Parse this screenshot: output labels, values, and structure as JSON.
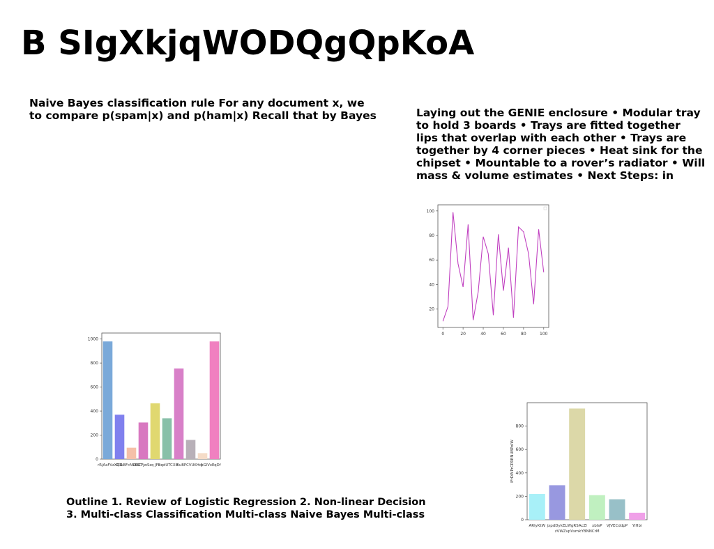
{
  "slide": {
    "title": "B SIgXkjqWODQgQpKoA",
    "text_blocks": [
      "Naive Bayes classification rule For any document x, we\nto compare p(spam|x) and p(ham|x) Recall that by Bayes",
      "Laying out the GENIE enclosure • Modular tray\nto hold 3 boards • Trays are fitted together\nlips that overlap with each other • Trays are\ntogether by 4 corner pieces • Heat sink for the\nchipset • Mountable to a rover’s radiator • Will\nmass & volume estimates • Next Steps: in",
      "Outline 1. Review of Logistic Regression 2. Non-linear Decision\n3. Multi-class Classification Multi-class Naive Bayes Multi-class"
    ]
  },
  "chart_data": [
    {
      "type": "line",
      "x": [
        0,
        5,
        10,
        15,
        20,
        25,
        30,
        35,
        40,
        45,
        50,
        55,
        60,
        65,
        70,
        75,
        80,
        85,
        90,
        95,
        100
      ],
      "series": [
        {
          "color": "#c040c0",
          "values": [
            10,
            22,
            99,
            57,
            38,
            89,
            11,
            34,
            79,
            65,
            15,
            81,
            35,
            70,
            13,
            87,
            83,
            65,
            24,
            85,
            50
          ]
        }
      ],
      "xticks": [
        "0",
        "20",
        "40",
        "60",
        "80",
        "100"
      ],
      "yticks": [
        "20",
        "40",
        "60",
        "80",
        "100"
      ],
      "xlim": [
        -5,
        105
      ],
      "ylim": [
        5,
        105
      ]
    },
    {
      "type": "bar",
      "categories": [
        "rRjAaFVzXQD",
        "CDLBFcNUDKT",
        "DKCPjwSzq",
        "JFEuqdUTCXB",
        "AuBPCVUKHcJ",
        "bGIVxEqDf",
        "",
        "",
        "",
        ""
      ],
      "tick_labels": [
        "rRjAaFVzXQD",
        "CDLBFcNUDKT",
        "DKCPjwSzq JFE",
        "uqdUTCXB",
        "AuBPCVUKHcJ",
        "bGIVxEqDf"
      ],
      "values": [
        980,
        370,
        95,
        305,
        465,
        340,
        755,
        160,
        50,
        980
      ],
      "colors": [
        "#7aa9d9",
        "#8080ee",
        "#f5c0a8",
        "#d878c0",
        "#e0d870",
        "#88c0a8",
        "#d880c8",
        "#b8b0b8",
        "#f5dcc8",
        "#f080c0"
      ],
      "ylim": [
        0,
        1050
      ],
      "yticks": [
        "0",
        "200",
        "400",
        "600",
        "800",
        "1000"
      ]
    },
    {
      "type": "bar",
      "categories": [
        "ARlyKtW",
        "jxpdDykEL",
        "WgRSAcZl\nzVWZvpVsmkYBNNCrM",
        "xbIsP",
        "VJVECddpP",
        "YiHbi"
      ],
      "values": [
        220,
        295,
        950,
        210,
        175,
        60
      ],
      "colors": [
        "#a8f0f8",
        "#9898e0",
        "#dcd8a8",
        "#c0f0c0",
        "#98c0c8",
        "#f0a0e8"
      ],
      "ylabel": "IFrDWPrCPRENUBPoIW",
      "ylim": [
        0,
        1000
      ],
      "yticks": [
        "0",
        "200",
        "400",
        "600",
        "800"
      ]
    }
  ]
}
